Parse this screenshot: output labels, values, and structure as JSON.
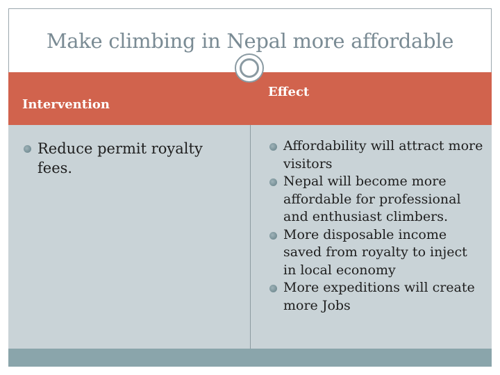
{
  "slide": {
    "title": "Make climbing in Nepal more affordable",
    "table": {
      "headers": {
        "intervention": "Intervention",
        "effect": "Effect"
      },
      "intervention_items": [
        "Reduce permit royalty fees."
      ],
      "effect_items": [
        "Affordability will attract more visitors",
        "Nepal will become more affordable for professional and enthusiast climbers.",
        "More disposable income saved from royalty to inject in local economy",
        "More expeditions will create more Jobs"
      ]
    }
  },
  "colors": {
    "header_band": "#d1634d",
    "body_band": "#c9d3d7",
    "bottom_band": "#8aa5ab",
    "title_text": "#7a8b94"
  }
}
